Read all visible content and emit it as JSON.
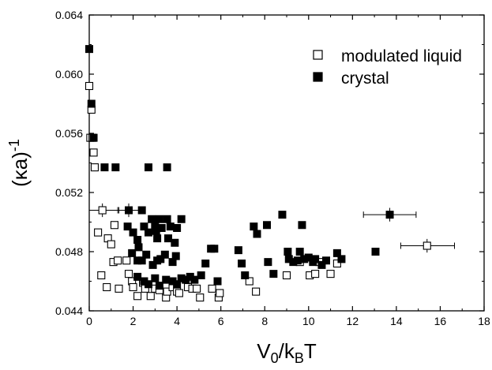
{
  "chart_data": {
    "type": "scatter",
    "xlabel": "V",
    "xlabel_sub1": "0",
    "xlabel_mid": "/k",
    "xlabel_sub2": "B",
    "xlabel_end": "T",
    "ylabel": "(κa)",
    "ylabel_sup": "-1",
    "xlim": [
      0,
      18
    ],
    "ylim": [
      0.044,
      0.064
    ],
    "xticks": [
      "0",
      "2",
      "4",
      "6",
      "8",
      "10",
      "12",
      "14",
      "16",
      "18"
    ],
    "yticks": [
      "0.044",
      "0.048",
      "0.052",
      "0.056",
      "0.060",
      "0.064"
    ],
    "legend_position": "top-right",
    "series": [
      {
        "name": "modulated liquid",
        "marker": "open-square",
        "points": [
          [
            0.0,
            0.0592
          ],
          [
            0.05,
            0.0557
          ],
          [
            0.1,
            0.0576
          ],
          [
            0.15,
            0.0557
          ],
          [
            0.2,
            0.0547
          ],
          [
            0.25,
            0.0537
          ],
          [
            0.4,
            0.0493
          ],
          [
            0.6,
            0.0508
          ],
          [
            0.55,
            0.0464
          ],
          [
            0.8,
            0.0456
          ],
          [
            0.85,
            0.0489
          ],
          [
            1.0,
            0.0485
          ],
          [
            1.1,
            0.0473
          ],
          [
            1.15,
            0.0498
          ],
          [
            1.3,
            0.0474
          ],
          [
            1.35,
            0.0455
          ],
          [
            1.7,
            0.0474
          ],
          [
            1.8,
            0.0465
          ],
          [
            1.95,
            0.046
          ],
          [
            2.0,
            0.0456
          ],
          [
            2.2,
            0.045
          ],
          [
            2.45,
            0.0459
          ],
          [
            2.55,
            0.0455
          ],
          [
            2.8,
            0.045
          ],
          [
            3.0,
            0.0455
          ],
          [
            3.2,
            0.0454
          ],
          [
            3.5,
            0.0449
          ],
          [
            3.55,
            0.0453
          ],
          [
            3.8,
            0.0456
          ],
          [
            4.0,
            0.0453
          ],
          [
            4.1,
            0.0452
          ],
          [
            4.5,
            0.0456
          ],
          [
            4.7,
            0.0455
          ],
          [
            4.9,
            0.0455
          ],
          [
            5.05,
            0.0449
          ],
          [
            5.6,
            0.0455
          ],
          [
            5.9,
            0.0449
          ],
          [
            5.95,
            0.0452
          ],
          [
            7.3,
            0.046
          ],
          [
            7.6,
            0.0453
          ],
          [
            9.0,
            0.0464
          ],
          [
            9.6,
            0.0473
          ],
          [
            10.05,
            0.0464
          ],
          [
            10.3,
            0.0465
          ],
          [
            10.5,
            0.0473
          ],
          [
            11.0,
            0.0465
          ],
          [
            11.3,
            0.0472
          ],
          [
            15.4,
            0.0484
          ]
        ]
      },
      {
        "name": "crystal",
        "marker": "filled-square",
        "points": [
          [
            0.0,
            0.0617
          ],
          [
            0.1,
            0.058
          ],
          [
            0.2,
            0.0557
          ],
          [
            0.7,
            0.0537
          ],
          [
            1.2,
            0.0537
          ],
          [
            2.7,
            0.0537
          ],
          [
            3.55,
            0.0537
          ],
          [
            1.8,
            0.0508
          ],
          [
            2.4,
            0.0508
          ],
          [
            1.75,
            0.0497
          ],
          [
            2.0,
            0.0493
          ],
          [
            1.95,
            0.0479
          ],
          [
            2.2,
            0.0488
          ],
          [
            2.25,
            0.0483
          ],
          [
            2.5,
            0.0497
          ],
          [
            2.7,
            0.0493
          ],
          [
            2.85,
            0.0502
          ],
          [
            3.0,
            0.0498
          ],
          [
            3.05,
            0.0494
          ],
          [
            3.1,
            0.0489
          ],
          [
            3.2,
            0.0502
          ],
          [
            3.3,
            0.0496
          ],
          [
            3.55,
            0.0502
          ],
          [
            3.6,
            0.0489
          ],
          [
            3.7,
            0.0497
          ],
          [
            3.9,
            0.0486
          ],
          [
            4.0,
            0.0496
          ],
          [
            4.2,
            0.0502
          ],
          [
            2.2,
            0.0474
          ],
          [
            2.4,
            0.0474
          ],
          [
            2.6,
            0.0478
          ],
          [
            2.9,
            0.0471
          ],
          [
            3.1,
            0.0474
          ],
          [
            3.25,
            0.0475
          ],
          [
            3.45,
            0.0478
          ],
          [
            3.8,
            0.0473
          ],
          [
            3.95,
            0.0477
          ],
          [
            2.2,
            0.0463
          ],
          [
            2.5,
            0.046
          ],
          [
            2.7,
            0.0458
          ],
          [
            3.0,
            0.0462
          ],
          [
            3.2,
            0.0457
          ],
          [
            3.5,
            0.0461
          ],
          [
            3.8,
            0.046
          ],
          [
            4.0,
            0.0458
          ],
          [
            4.2,
            0.0462
          ],
          [
            4.4,
            0.0461
          ],
          [
            4.6,
            0.0463
          ],
          [
            4.8,
            0.0461
          ],
          [
            5.1,
            0.0464
          ],
          [
            5.3,
            0.0472
          ],
          [
            5.55,
            0.0482
          ],
          [
            5.7,
            0.0482
          ],
          [
            5.85,
            0.046
          ],
          [
            6.8,
            0.0481
          ],
          [
            6.95,
            0.0472
          ],
          [
            7.1,
            0.0464
          ],
          [
            7.5,
            0.0497
          ],
          [
            7.65,
            0.0492
          ],
          [
            8.1,
            0.0498
          ],
          [
            8.15,
            0.0473
          ],
          [
            8.4,
            0.0465
          ],
          [
            8.8,
            0.0505
          ],
          [
            9.05,
            0.048
          ],
          [
            9.1,
            0.0475
          ],
          [
            9.3,
            0.0473
          ],
          [
            9.5,
            0.0474
          ],
          [
            9.6,
            0.048
          ],
          [
            9.7,
            0.0498
          ],
          [
            9.8,
            0.0475
          ],
          [
            10.0,
            0.0476
          ],
          [
            10.2,
            0.0473
          ],
          [
            10.3,
            0.0475
          ],
          [
            10.6,
            0.0471
          ],
          [
            10.8,
            0.0474
          ],
          [
            11.3,
            0.0479
          ],
          [
            11.5,
            0.0475
          ],
          [
            13.05,
            0.048
          ],
          [
            13.7,
            0.0505
          ]
        ]
      }
    ],
    "error_bars": [
      {
        "series": "modulated liquid",
        "x": 0.6,
        "y": 0.0508,
        "x_lo": 0.0,
        "x_hi": 1.35,
        "y_err": 0.0003
      },
      {
        "series": "modulated liquid",
        "x": 15.4,
        "y": 0.0484,
        "x_lo": 14.2,
        "x_hi": 16.65,
        "y_err": 0.0003
      },
      {
        "series": "crystal",
        "x": 1.8,
        "y": 0.0508,
        "x_lo": 1.3,
        "x_hi": 2.35,
        "y_err": 0.0003
      },
      {
        "series": "crystal",
        "x": 13.7,
        "y": 0.0505,
        "x_lo": 12.5,
        "x_hi": 14.9,
        "y_err": 0.0003
      }
    ]
  }
}
